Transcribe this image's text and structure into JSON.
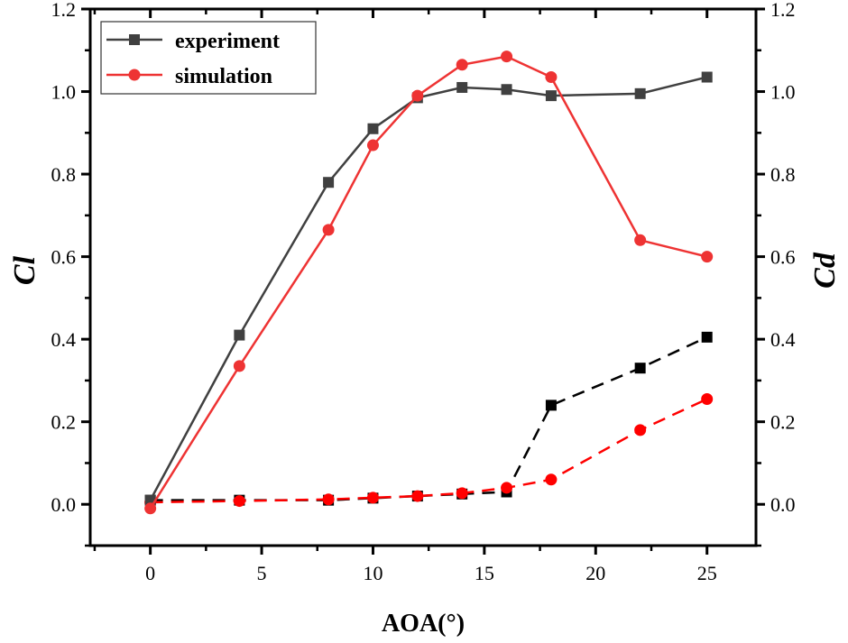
{
  "chart_data": {
    "type": "line",
    "title": "",
    "xlabel": "AOA(°)",
    "ylabel": "Cl",
    "y2label": "Cd",
    "xlim": [
      -2.7,
      27.2
    ],
    "ylim": [
      -0.1,
      1.2
    ],
    "y2lim": [
      -0.1,
      1.2
    ],
    "xticks": [
      "0",
      "5",
      "10",
      "15",
      "20",
      "25"
    ],
    "xtick_values": [
      0,
      5,
      10,
      15,
      20,
      25
    ],
    "yticks": [
      "0.0",
      "0.2",
      "0.4",
      "0.6",
      "0.8",
      "1.0",
      "1.2"
    ],
    "ytick_values": [
      0,
      0.2,
      0.4,
      0.6,
      0.8,
      1.0,
      1.2
    ],
    "grid": false,
    "legend": {
      "position": "top-left",
      "entries": [
        "experiment",
        "simulation"
      ]
    },
    "x": [
      0,
      4,
      8,
      10,
      12,
      14,
      16,
      18,
      22,
      25
    ],
    "series": [
      {
        "name": "experiment",
        "axis": "Cl",
        "style": "solid",
        "marker": "square",
        "color": "#404040",
        "values": [
          0.01,
          0.41,
          0.78,
          0.91,
          0.985,
          1.01,
          1.005,
          0.99,
          0.995,
          1.035
        ]
      },
      {
        "name": "simulation",
        "axis": "Cl",
        "style": "solid",
        "marker": "circle",
        "color": "#ee3333",
        "values": [
          -0.01,
          0.335,
          0.665,
          0.87,
          0.99,
          1.065,
          1.085,
          1.035,
          0.64,
          0.6
        ]
      },
      {
        "name": "experiment",
        "axis": "Cd",
        "style": "dashed",
        "marker": "square",
        "color": "#000000",
        "values": [
          0.01,
          0.01,
          0.01,
          0.015,
          0.02,
          0.025,
          0.03,
          0.24,
          0.33,
          0.405
        ]
      },
      {
        "name": "simulation",
        "axis": "Cd",
        "style": "dashed",
        "marker": "circle",
        "color": "#ff0000",
        "values": [
          0.005,
          0.008,
          0.012,
          0.016,
          0.02,
          0.027,
          0.04,
          0.06,
          0.18,
          0.255
        ]
      }
    ]
  }
}
